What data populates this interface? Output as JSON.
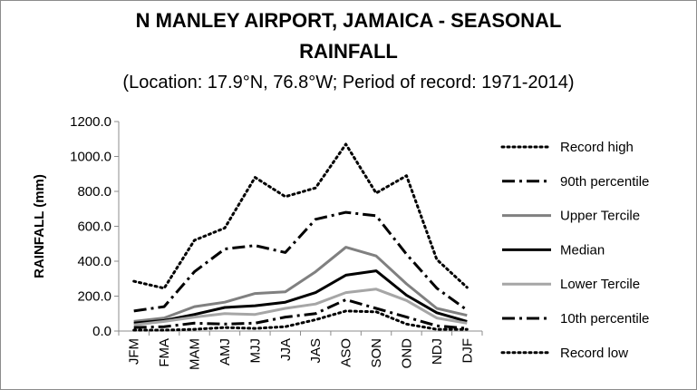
{
  "chart_data": {
    "type": "line",
    "title_line1": "N MANLEY AIRPORT, JAMAICA - SEASONAL",
    "title_line2": "RAINFALL",
    "subtitle": "(Location: 17.9°N, 76.8°W; Period of record: 1971-2014)",
    "ylabel": "RAINFALL (mm)",
    "xlabel": "",
    "ylim": [
      0,
      1200
    ],
    "yticks": [
      "0.0",
      "200.0",
      "400.0",
      "600.0",
      "800.0",
      "1000.0",
      "1200.0"
    ],
    "categories": [
      "JFM",
      "FMA",
      "MAM",
      "AMJ",
      "MJJ",
      "JJA",
      "JAS",
      "ASO",
      "SON",
      "OND",
      "NDJ",
      "DJF"
    ],
    "grid": false,
    "legend_position": "right",
    "series": [
      {
        "name": "Record high",
        "style": "dotted",
        "color": "#000000",
        "width": 3,
        "values": [
          285,
          245,
          520,
          590,
          880,
          770,
          820,
          1070,
          790,
          890,
          410,
          250
        ]
      },
      {
        "name": "90th percentile",
        "style": "dashdot",
        "color": "#000000",
        "width": 3,
        "values": [
          115,
          140,
          340,
          470,
          490,
          450,
          640,
          680,
          660,
          440,
          245,
          120
        ]
      },
      {
        "name": "Upper Tercile",
        "style": "solid",
        "color": "#808080",
        "width": 3,
        "values": [
          55,
          75,
          140,
          165,
          215,
          225,
          340,
          480,
          430,
          270,
          130,
          90
        ]
      },
      {
        "name": "Median",
        "style": "solid",
        "color": "#000000",
        "width": 3,
        "values": [
          45,
          60,
          95,
          135,
          145,
          165,
          220,
          320,
          345,
          205,
          105,
          55
        ]
      },
      {
        "name": "Lower Tercile",
        "style": "solid",
        "color": "#a6a6a6",
        "width": 3,
        "values": [
          35,
          55,
          80,
          100,
          95,
          130,
          155,
          220,
          240,
          175,
          75,
          45
        ]
      },
      {
        "name": "10th percentile",
        "style": "dashdot",
        "color": "#000000",
        "width": 3,
        "values": [
          20,
          25,
          45,
          40,
          45,
          80,
          100,
          180,
          130,
          80,
          30,
          15
        ]
      },
      {
        "name": "Record low",
        "style": "dotted",
        "color": "#000000",
        "width": 3,
        "values": [
          5,
          5,
          10,
          20,
          15,
          25,
          65,
          115,
          110,
          40,
          10,
          10
        ]
      }
    ]
  }
}
